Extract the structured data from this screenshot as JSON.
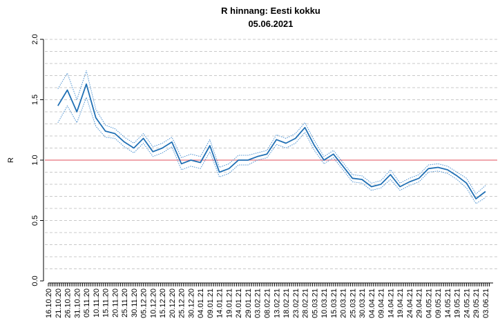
{
  "chart_data": {
    "type": "line",
    "title": "R hinnang: Eesti kokku",
    "subtitle": "05.06.2021",
    "y_label": "R",
    "categories": [
      "16.10.20",
      "21.10.20",
      "26.10.20",
      "31.10.20",
      "05.11.20",
      "10.11.20",
      "15.11.20",
      "20.11.20",
      "25.11.20",
      "30.11.20",
      "05.12.20",
      "10.12.20",
      "15.12.20",
      "20.12.20",
      "25.12.20",
      "30.12.20",
      "04.01.21",
      "09.01.21",
      "14.01.21",
      "19.01.21",
      "24.01.21",
      "29.01.21",
      "03.02.21",
      "08.02.21",
      "13.02.21",
      "18.02.21",
      "23.02.21",
      "28.02.21",
      "05.03.21",
      "10.03.21",
      "15.03.21",
      "20.03.21",
      "25.03.21",
      "30.03.21",
      "04.04.21",
      "09.04.21",
      "14.04.21",
      "19.04.21",
      "24.04.21",
      "29.04.21",
      "04.05.21",
      "09.05.21",
      "14.05.21",
      "19.05.21",
      "24.05.21",
      "29.05.21",
      "03.06.21"
    ],
    "series": [
      {
        "name": "R",
        "color": "#1f6fb4",
        "style": "solid",
        "values": [
          null,
          1.45,
          1.58,
          1.4,
          1.63,
          1.35,
          1.24,
          1.22,
          1.15,
          1.1,
          1.18,
          1.07,
          1.1,
          1.15,
          0.97,
          1.0,
          0.98,
          1.12,
          0.9,
          0.93,
          1.0,
          1.0,
          1.03,
          1.05,
          1.17,
          1.14,
          1.18,
          1.27,
          1.12,
          1.0,
          1.05,
          0.95,
          0.85,
          0.84,
          0.78,
          0.8,
          0.88,
          0.78,
          0.82,
          0.85,
          0.93,
          0.94,
          0.92,
          0.87,
          0.81,
          0.68,
          0.74
        ]
      },
      {
        "name": "lower",
        "color": "#4a90d0",
        "style": "dotted",
        "values": [
          null,
          1.31,
          1.45,
          1.31,
          1.52,
          1.28,
          1.19,
          1.18,
          1.11,
          1.06,
          1.14,
          1.03,
          1.06,
          1.11,
          0.92,
          0.95,
          0.93,
          1.07,
          0.86,
          0.89,
          0.96,
          0.96,
          1.0,
          1.02,
          1.13,
          1.1,
          1.14,
          1.23,
          1.08,
          0.97,
          1.02,
          0.92,
          0.82,
          0.81,
          0.75,
          0.77,
          0.84,
          0.75,
          0.79,
          0.82,
          0.9,
          0.91,
          0.89,
          0.84,
          0.77,
          0.64,
          0.69
        ]
      },
      {
        "name": "upper",
        "color": "#4a90d0",
        "style": "dotted",
        "values": [
          null,
          1.59,
          1.72,
          1.5,
          1.74,
          1.42,
          1.29,
          1.26,
          1.19,
          1.14,
          1.22,
          1.11,
          1.14,
          1.19,
          1.02,
          1.05,
          1.03,
          1.17,
          0.94,
          0.97,
          1.04,
          1.04,
          1.06,
          1.08,
          1.21,
          1.18,
          1.22,
          1.31,
          1.16,
          1.03,
          1.08,
          0.98,
          0.88,
          0.87,
          0.81,
          0.83,
          0.92,
          0.81,
          0.85,
          0.88,
          0.96,
          0.97,
          0.95,
          0.9,
          0.85,
          0.72,
          0.79
        ]
      }
    ],
    "ylim": [
      0,
      2
    ],
    "yticks": [
      {
        "value": 0,
        "label": "0.0"
      },
      0.5,
      {
        "value": 1,
        "label": "1.0"
      },
      1.5,
      {
        "value": 2,
        "label": "2.0"
      }
    ],
    "grid_lines": [
      0.1,
      0.2,
      0.3,
      0.4,
      0.5,
      0.6,
      0.7,
      0.8,
      0.9,
      1.1,
      1.2,
      1.3,
      1.4,
      1.5,
      1.6,
      1.7,
      1.8,
      1.9,
      2
    ],
    "reference_line": {
      "value": 1,
      "color": "#e8707a"
    }
  }
}
